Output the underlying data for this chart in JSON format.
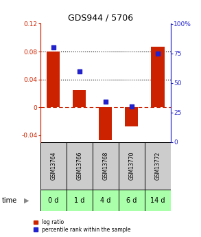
{
  "title": "GDS944 / 5706",
  "samples": [
    "GSM13764",
    "GSM13766",
    "GSM13768",
    "GSM13770",
    "GSM13772"
  ],
  "times": [
    "0 d",
    "1 d",
    "4 d",
    "6 d",
    "14 d"
  ],
  "log_ratio": [
    0.08,
    0.025,
    -0.047,
    -0.027,
    0.087
  ],
  "percentile": [
    0.8,
    0.6,
    0.34,
    0.3,
    0.75
  ],
  "bar_color": "#CC2200",
  "dot_color": "#2222CC",
  "ylim_left": [
    -0.05,
    0.12
  ],
  "ylim_right": [
    0.0,
    1.0
  ],
  "yticks_left": [
    -0.04,
    0.0,
    0.04,
    0.08,
    0.12
  ],
  "ytick_labels_left": [
    "-0.04",
    "0",
    "0.04",
    "0.08",
    "0.12"
  ],
  "yticks_right": [
    0.0,
    0.25,
    0.5,
    0.75,
    1.0
  ],
  "ytick_labels_right": [
    "0",
    "25",
    "50",
    "75",
    "100%"
  ],
  "hlines": [
    0.04,
    0.08
  ],
  "zero_line_color": "#CC2200",
  "background_gsm": "#cccccc",
  "background_time": "#aaffaa",
  "legend_items": [
    "log ratio",
    "percentile rank within the sample"
  ]
}
